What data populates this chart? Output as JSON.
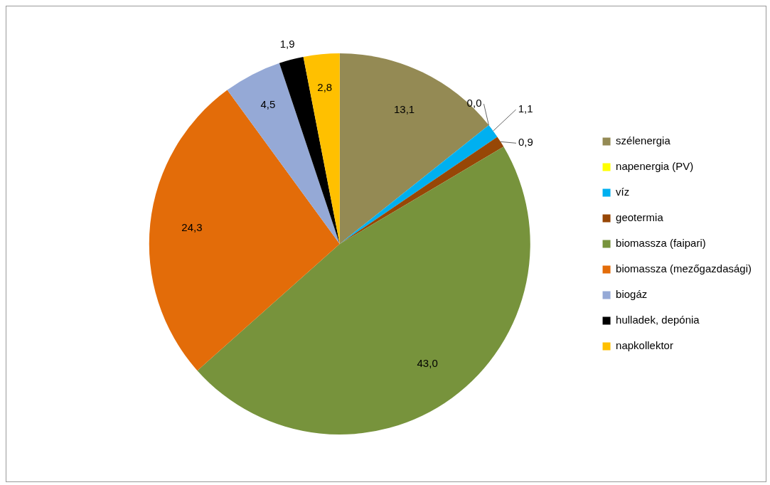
{
  "chart_data": {
    "type": "pie",
    "categories": [
      "szélenergia",
      "napenergia (PV)",
      "víz",
      "geotermia",
      "biomassza (faipari)",
      "biomassza (mezőgazdasági)",
      "biogáz",
      "hulladek, depónia",
      "napkollektor"
    ],
    "values": [
      13.1,
      0.0,
      1.1,
      0.9,
      43.0,
      24.3,
      4.5,
      1.9,
      2.8
    ],
    "value_labels": [
      "13,1",
      "0,0",
      "1,1",
      "0,9",
      "43,0",
      "24,3",
      "4,5",
      "1,9",
      "2,8"
    ],
    "colors": [
      "#948a54",
      "#ffff00",
      "#00b0f0",
      "#974706",
      "#77933c",
      "#e36c09",
      "#95a9d6",
      "#000000",
      "#ffc000"
    ],
    "legend": "right"
  }
}
